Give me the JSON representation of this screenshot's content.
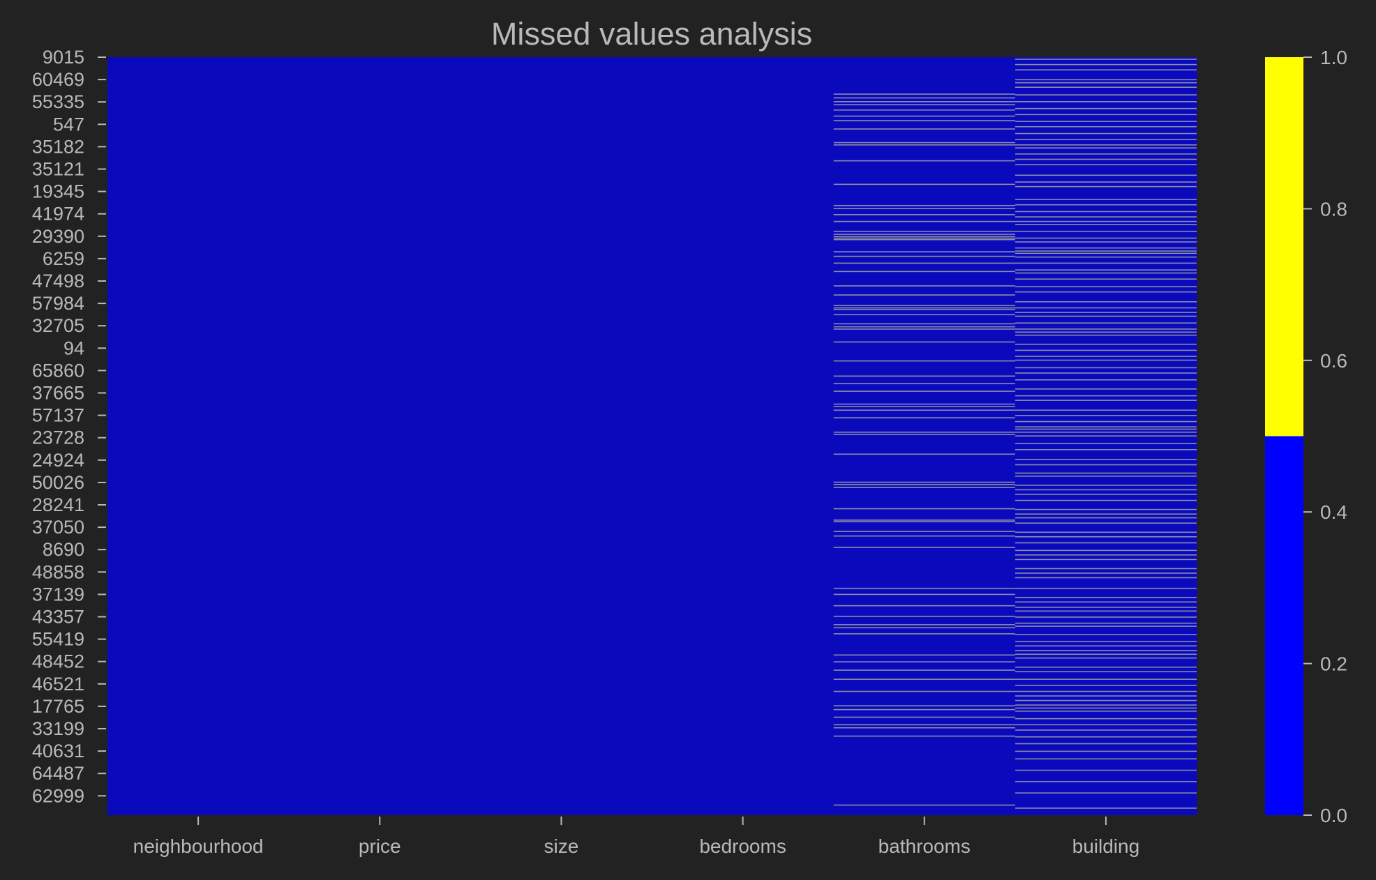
{
  "chart_data": {
    "type": "heatmap",
    "title": "Missed values analysis",
    "xlabel": "",
    "ylabel": "",
    "columns": [
      "neighbourhood",
      "price",
      "size",
      "bedrooms",
      "bathrooms",
      "building"
    ],
    "row_labels": [
      "9015",
      "60469",
      "55335",
      "547",
      "35182",
      "35121",
      "19345",
      "41974",
      "29390",
      "6259",
      "47498",
      "57984",
      "32705",
      "94",
      "65860",
      "37665",
      "57137",
      "23728",
      "24924",
      "50026",
      "28241",
      "37050",
      "8690",
      "48858",
      "37139",
      "43357",
      "55419",
      "48452",
      "46521",
      "17765",
      "33199",
      "40631",
      "64487",
      "62999"
    ],
    "missing_row_fraction": {
      "bathrooms": [
        0.048,
        0.053,
        0.058,
        0.062,
        0.069,
        0.077,
        0.083,
        0.094,
        0.112,
        0.115,
        0.136,
        0.167,
        0.195,
        0.199,
        0.207,
        0.216,
        0.229,
        0.233,
        0.236,
        0.238,
        0.24,
        0.256,
        0.262,
        0.271,
        0.282,
        0.301,
        0.313,
        0.327,
        0.33,
        0.332,
        0.339,
        0.351,
        0.355,
        0.358,
        0.375,
        0.4,
        0.42,
        0.43,
        0.44,
        0.457,
        0.46,
        0.465,
        0.475,
        0.494,
        0.497,
        0.523,
        0.56,
        0.563,
        0.567,
        0.595,
        0.61,
        0.612,
        0.625,
        0.631,
        0.646,
        0.7,
        0.708,
        0.723,
        0.737,
        0.748,
        0.752,
        0.76,
        0.788,
        0.797,
        0.808,
        0.82,
        0.836,
        0.855,
        0.86,
        0.87,
        0.88,
        0.884,
        0.895,
        0.986
      ],
      "building": [
        0.002,
        0.009,
        0.016,
        0.029,
        0.033,
        0.039,
        0.049,
        0.058,
        0.067,
        0.075,
        0.084,
        0.091,
        0.1,
        0.108,
        0.115,
        0.119,
        0.127,
        0.134,
        0.141,
        0.155,
        0.164,
        0.17,
        0.187,
        0.194,
        0.203,
        0.21,
        0.216,
        0.22,
        0.229,
        0.238,
        0.243,
        0.251,
        0.255,
        0.258,
        0.263,
        0.271,
        0.28,
        0.284,
        0.292,
        0.302,
        0.309,
        0.322,
        0.33,
        0.336,
        0.341,
        0.35,
        0.358,
        0.362,
        0.366,
        0.378,
        0.386,
        0.394,
        0.399,
        0.409,
        0.416,
        0.425,
        0.437,
        0.446,
        0.452,
        0.465,
        0.472,
        0.48,
        0.487,
        0.49,
        0.494,
        0.499,
        0.509,
        0.517,
        0.53,
        0.537,
        0.548,
        0.552,
        0.564,
        0.57,
        0.576,
        0.584,
        0.596,
        0.602,
        0.607,
        0.614,
        0.626,
        0.632,
        0.64,
        0.65,
        0.656,
        0.662,
        0.674,
        0.68,
        0.686,
        0.7,
        0.712,
        0.718,
        0.725,
        0.73,
        0.738,
        0.746,
        0.75,
        0.761,
        0.77,
        0.776,
        0.782,
        0.787,
        0.792,
        0.804,
        0.81,
        0.82,
        0.828,
        0.836,
        0.842,
        0.848,
        0.854,
        0.858,
        0.862,
        0.872,
        0.88,
        0.887,
        0.896,
        0.905,
        0.915,
        0.925,
        0.94,
        0.955,
        0.97,
        0.99
      ]
    },
    "colorbar": {
      "ticks": [
        "0.0",
        "0.2",
        "0.4",
        "0.6",
        "0.8",
        "1.0"
      ],
      "range": [
        0,
        1
      ],
      "colors": [
        {
          "from": 0.0,
          "to": 0.5,
          "color": "#0000ff"
        },
        {
          "from": 0.5,
          "to": 1.0,
          "color": "#ffff00"
        }
      ]
    },
    "colors": {
      "present": "#0a0abc",
      "missing": "#8c8ca8",
      "background": "#222222",
      "text": "#b9b9b9"
    },
    "grid": false
  }
}
